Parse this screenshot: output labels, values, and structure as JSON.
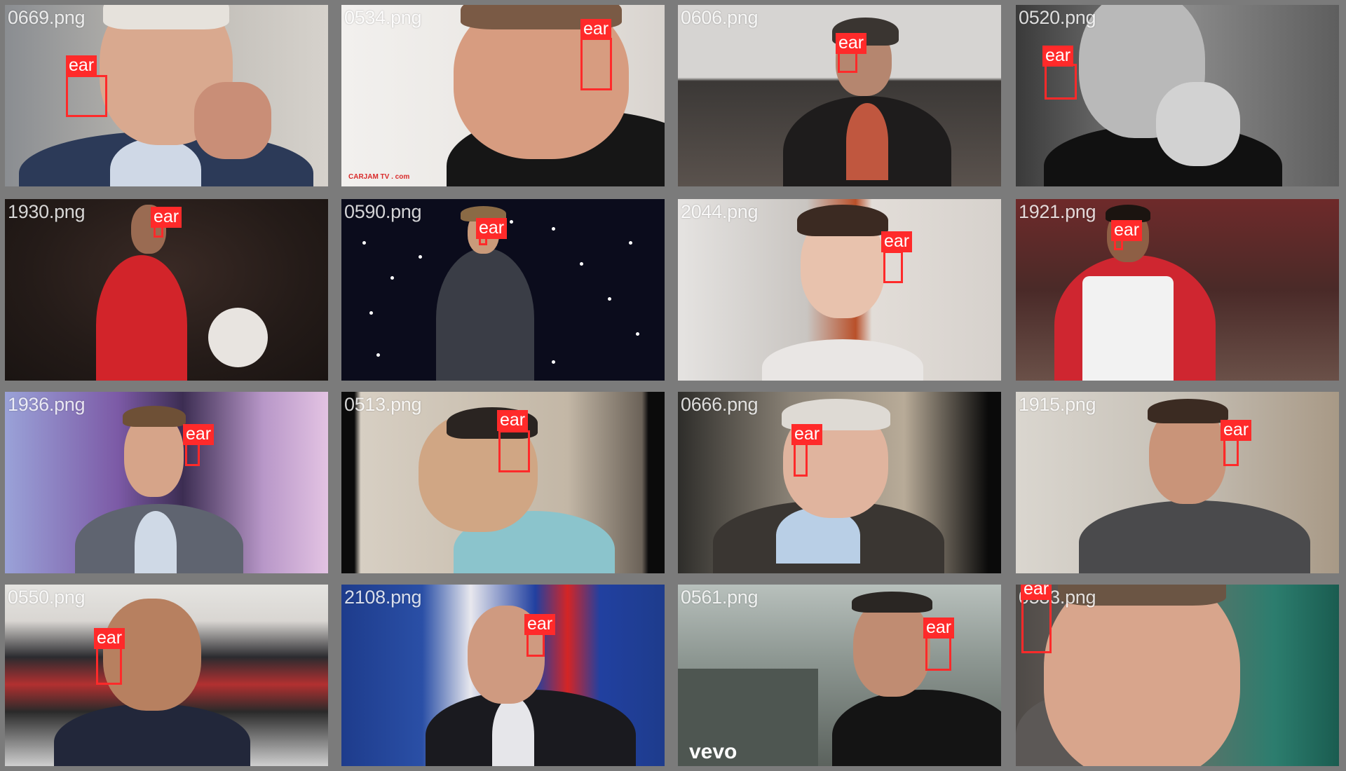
{
  "mosaic": {
    "label_color": "#ff2a2a",
    "tiles": [
      {
        "file": "0669.png",
        "label": "ear"
      },
      {
        "file": "0534.png",
        "label": "ear"
      },
      {
        "file": "0606.png",
        "label": "ear"
      },
      {
        "file": "0520.png",
        "label": "ear"
      },
      {
        "file": "1930.png",
        "label": "ear"
      },
      {
        "file": "0590.png",
        "label": "ear"
      },
      {
        "file": "2044.png",
        "label": "ear"
      },
      {
        "file": "1921.png",
        "label": "ear"
      },
      {
        "file": "1936.png",
        "label": "ear"
      },
      {
        "file": "0513.png",
        "label": "ear"
      },
      {
        "file": "0666.png",
        "label": "ear"
      },
      {
        "file": "1915.png",
        "label": "ear"
      },
      {
        "file": "0550.png",
        "label": "ear"
      },
      {
        "file": "2108.png",
        "label": "ear"
      },
      {
        "file": "0561.png",
        "label": "ear"
      },
      {
        "file": "0533.png",
        "label": "ear"
      }
    ],
    "watermarks": {
      "tile1": "CARJAM TV . com",
      "tile14": "vevo"
    }
  }
}
